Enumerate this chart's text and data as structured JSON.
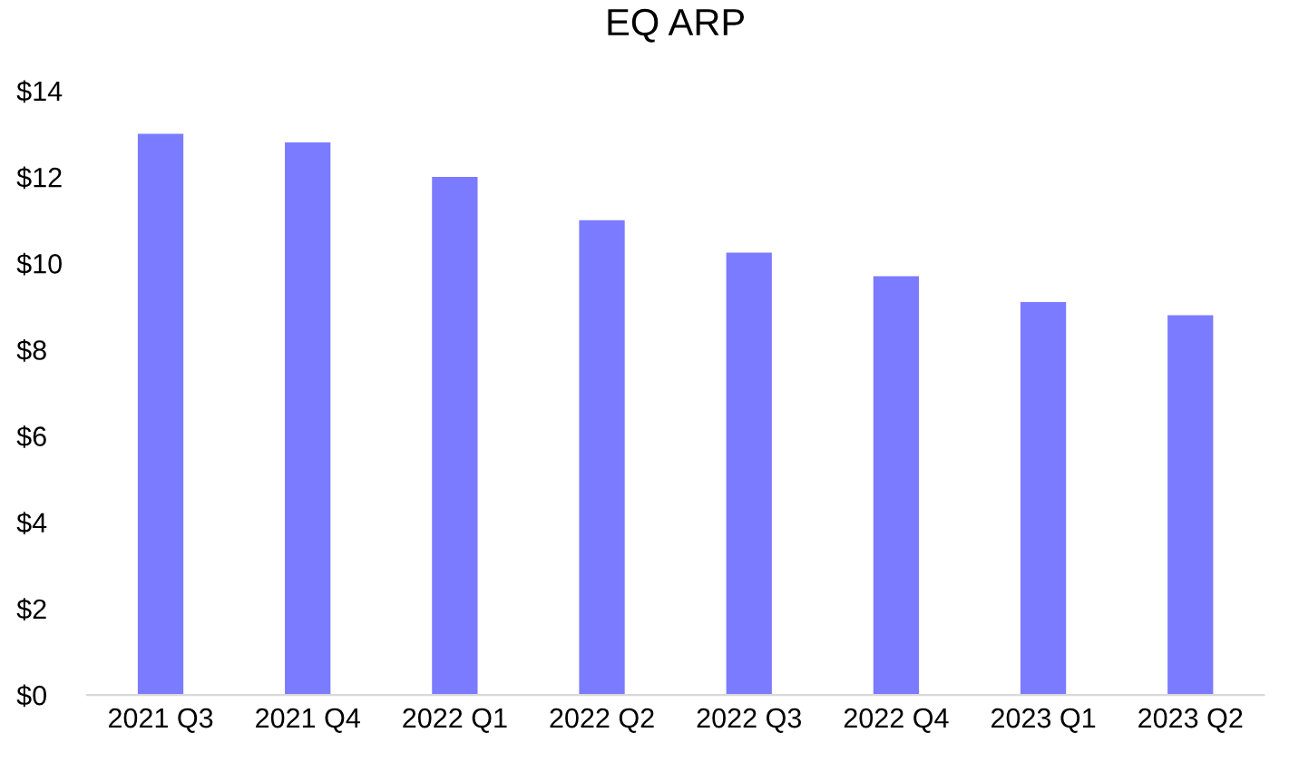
{
  "chart_data": {
    "type": "bar",
    "title": "EQ ARP",
    "categories": [
      "2021 Q3",
      "2021 Q4",
      "2022 Q1",
      "2022 Q2",
      "2022 Q3",
      "2022 Q4",
      "2023 Q1",
      "2023 Q2"
    ],
    "values": [
      13.0,
      12.8,
      12.0,
      11.0,
      10.25,
      9.7,
      9.1,
      8.8
    ],
    "color": "#7b7bff",
    "ylim": [
      0,
      14
    ],
    "yticks": [
      {
        "value": 0,
        "label": "$0"
      },
      {
        "value": 2,
        "label": "$2"
      },
      {
        "value": 4,
        "label": "$4"
      },
      {
        "value": 6,
        "label": "$6"
      },
      {
        "value": 8,
        "label": "$8"
      },
      {
        "value": 10,
        "label": "$10"
      },
      {
        "value": 12,
        "label": "$12"
      },
      {
        "value": 14,
        "label": "$14"
      }
    ],
    "grid": false,
    "legend": false
  }
}
